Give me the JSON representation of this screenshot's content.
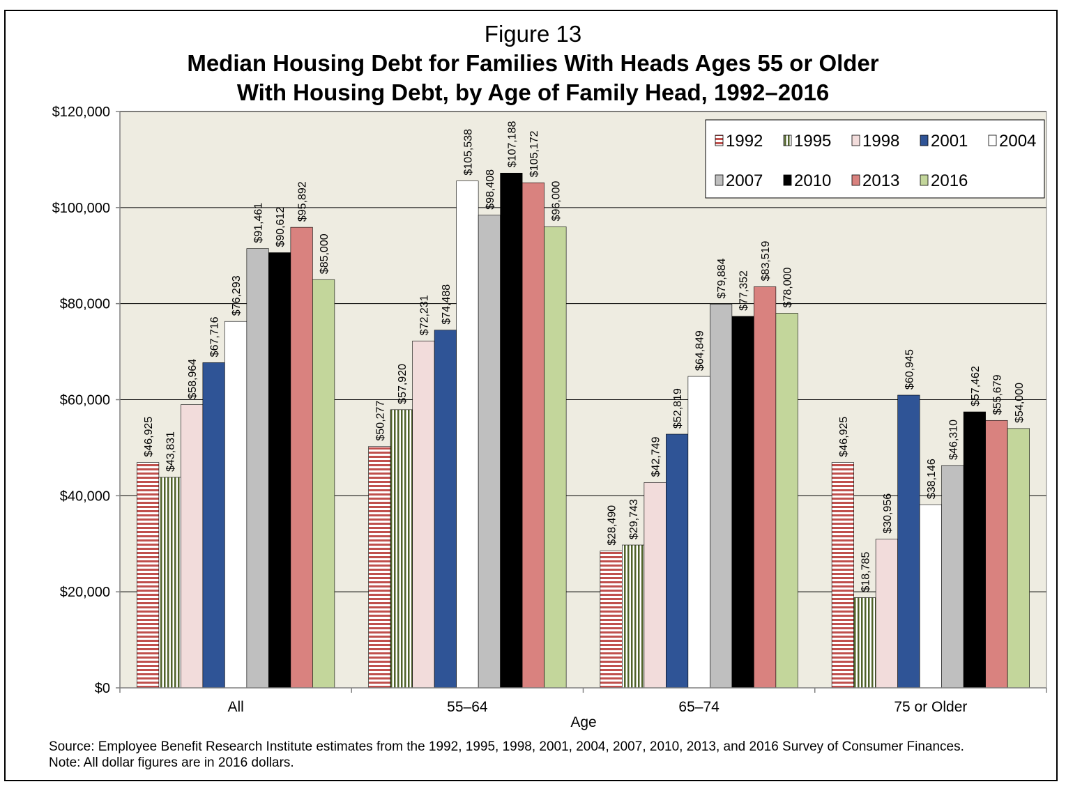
{
  "figure_label": "Figure 13",
  "title_line1": "Median Housing Debt for Families With Heads Ages 55 or Older",
  "title_line2": "With Housing Debt, by Age of Family Head, 1992–2016",
  "source": "Source: Employee Benefit Research Institute estimates from the 1992, 1995, 1998, 2001, 2004, 2007, 2010, 2013, and 2016 Survey of Consumer Finances.",
  "note": "Note: All dollar figures are in 2016 dollars.",
  "chart_data": {
    "type": "bar",
    "title": "Median Housing Debt for Families With Heads Ages 55 or Older With Housing Debt, by Age of Family Head, 1992–2016",
    "xlabel": "Age",
    "ylabel": "",
    "ylim": [
      0,
      120000
    ],
    "yticks": [
      0,
      20000,
      40000,
      60000,
      80000,
      100000,
      120000
    ],
    "ytick_labels": [
      "$0",
      "$20,000",
      "$40,000",
      "$60,000",
      "$80,000",
      "$100,000",
      "$120,000"
    ],
    "grid": true,
    "legend_position": "top-right",
    "categories": [
      "All",
      "55–64",
      "65–74",
      "75 or Older"
    ],
    "series": [
      {
        "name": "1992",
        "color": "#c0504d",
        "pattern": "horizontal-stripes",
        "values": [
          46925,
          50277,
          28490,
          46925
        ],
        "labels": [
          "$46,925",
          "$50,277",
          "$28,490",
          "$46,925"
        ]
      },
      {
        "name": "1995",
        "color": "#4f6228",
        "pattern": "vertical-stripes",
        "values": [
          43831,
          57920,
          29743,
          18785
        ],
        "labels": [
          "$43,831",
          "$57,920",
          "$29,743",
          "$18,785"
        ]
      },
      {
        "name": "1998",
        "color": "#f2dcdb",
        "pattern": "solid",
        "values": [
          58964,
          72231,
          42749,
          30956
        ],
        "labels": [
          "$58,964",
          "$72,231",
          "$42,749",
          "$30,956"
        ]
      },
      {
        "name": "2001",
        "color": "#2f5496",
        "pattern": "solid",
        "values": [
          67716,
          74488,
          52819,
          60945
        ],
        "labels": [
          "$67,716",
          "$74,488",
          "$52,819",
          "$60,945"
        ]
      },
      {
        "name": "2004",
        "color": "#ffffff",
        "pattern": "solid",
        "values": [
          76293,
          105538,
          64849,
          38146
        ],
        "labels": [
          "$76,293",
          "$105,538",
          "$64,849",
          "$38,146"
        ]
      },
      {
        "name": "2007",
        "color": "#bfbfbf",
        "pattern": "solid",
        "values": [
          91461,
          98408,
          79884,
          46310
        ],
        "labels": [
          "$91,461",
          "$98,408",
          "$79,884",
          "$46,310"
        ]
      },
      {
        "name": "2010",
        "color": "#000000",
        "pattern": "solid",
        "values": [
          90612,
          107188,
          77352,
          57462
        ],
        "labels": [
          "$90,612",
          "$107,188",
          "$77,352",
          "$57,462"
        ]
      },
      {
        "name": "2013",
        "color": "#d9827f",
        "pattern": "solid",
        "values": [
          95892,
          105172,
          83519,
          55679
        ],
        "labels": [
          "$95,892",
          "$105,172",
          "$83,519",
          "$55,679"
        ]
      },
      {
        "name": "2016",
        "color": "#c3d69b",
        "pattern": "solid",
        "values": [
          85000,
          96000,
          78000,
          54000
        ],
        "labels": [
          "$85,000",
          "$96,000",
          "$78,000",
          "$54,000"
        ]
      }
    ]
  }
}
